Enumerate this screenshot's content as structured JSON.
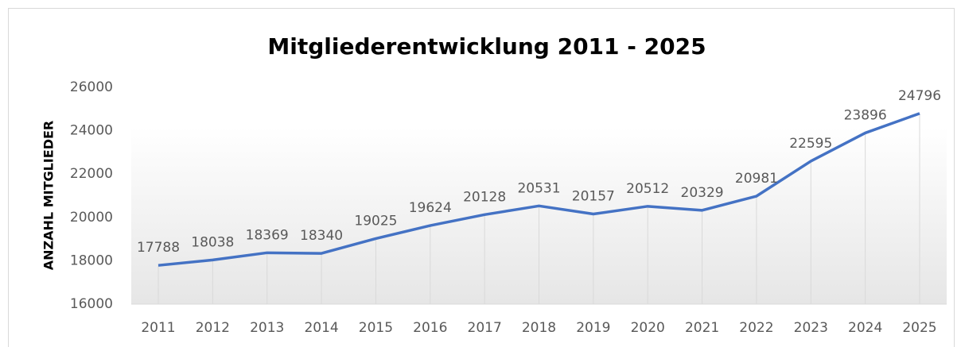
{
  "chart_data": {
    "type": "line",
    "title": "Mitgliederentwicklung  2011 - 2025",
    "y_label": "ANZAHL MITGLIEDER",
    "categories": [
      "2011",
      "2012",
      "2013",
      "2014",
      "2015",
      "2016",
      "2017",
      "2018",
      "2019",
      "2020",
      "2021",
      "2022",
      "2023",
      "2024",
      "2025"
    ],
    "series": [
      {
        "name": "Mitglieder",
        "color": "#4472c4",
        "values": [
          17788,
          18038,
          18369,
          18340,
          19025,
          19624,
          20128,
          20531,
          20157,
          20512,
          20329,
          20981,
          22595,
          23896,
          24796
        ]
      }
    ],
    "ylim": [
      16000,
      26000
    ],
    "yticks": [
      16000,
      18000,
      20000,
      22000,
      24000,
      26000
    ]
  }
}
